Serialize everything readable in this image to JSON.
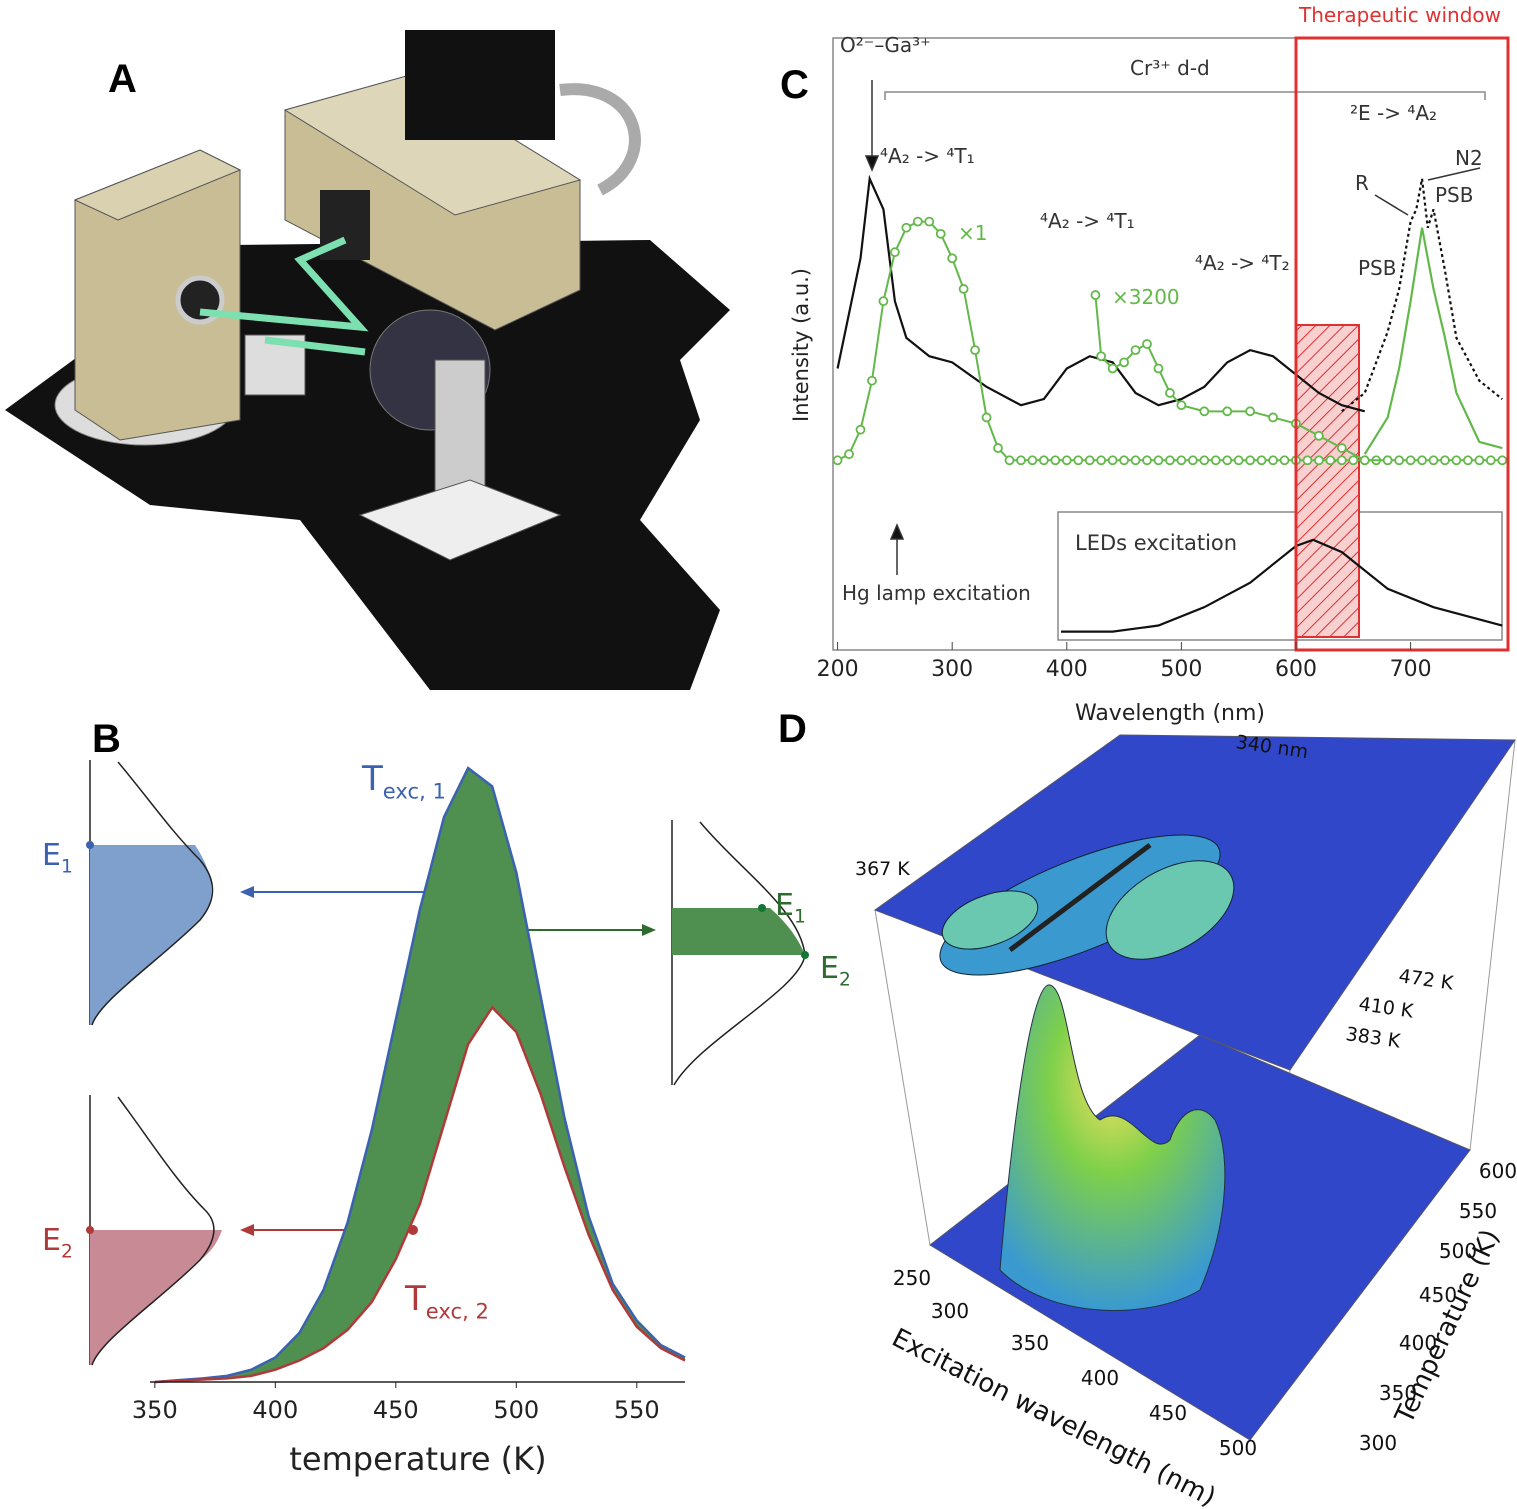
{
  "illustration": {
    "label": "A"
  },
  "chart_data": [
    {
      "type": "band",
      "label": "B",
      "xlabel": "temperature (K)",
      "xlim": [
        348,
        570
      ],
      "ylim": [
        0,
        1
      ],
      "xticks": [
        350,
        400,
        450,
        500,
        550
      ],
      "fill_color": "#4f8f4f",
      "x": [
        350,
        360,
        370,
        380,
        390,
        400,
        410,
        420,
        430,
        440,
        450,
        460,
        470,
        480,
        490,
        500,
        510,
        520,
        530,
        540,
        550,
        560,
        570
      ],
      "series": [
        {
          "color": "#3a62b0",
          "values": [
            0,
            0.003,
            0.006,
            0.01,
            0.02,
            0.04,
            0.08,
            0.15,
            0.26,
            0.41,
            0.59,
            0.77,
            0.92,
            1.0,
            0.97,
            0.83,
            0.63,
            0.43,
            0.27,
            0.16,
            0.1,
            0.06,
            0.04
          ]
        },
        {
          "color": "#b03a3a",
          "values": [
            0,
            0.002,
            0.004,
            0.006,
            0.01,
            0.02,
            0.035,
            0.055,
            0.085,
            0.13,
            0.2,
            0.29,
            0.42,
            0.55,
            0.61,
            0.57,
            0.47,
            0.35,
            0.24,
            0.15,
            0.09,
            0.055,
            0.035
          ]
        }
      ],
      "annotations": [
        {
          "main": "T",
          "sub": "exc, 1",
          "color": "#3a62b0"
        },
        {
          "main": "T",
          "sub": "exc, 2",
          "color": "#b03a3a"
        }
      ],
      "levels": [
        {
          "main": "E",
          "sub": "1",
          "color": "#3a62b0"
        },
        {
          "main": "E",
          "sub": "2",
          "color": "#b03a3a"
        },
        {
          "main": "E",
          "sub": "1",
          "color": "#2e6b2e"
        },
        {
          "main": "E",
          "sub": "2",
          "color": "#2e6b2e"
        }
      ]
    },
    {
      "type": "line",
      "label": "C",
      "xlabel": "Wavelength (nm)",
      "ylabel": "Intensity (a.u.)",
      "xlim": [
        196,
        785
      ],
      "ylim": [
        0,
        1
      ],
      "xticks": [
        200,
        300,
        400,
        500,
        600,
        700
      ],
      "window": {
        "label": "Therapeutic window",
        "range": [
          600,
          785
        ],
        "color": "#e03030"
      },
      "hatched_range": [
        600,
        655
      ],
      "series": [
        {
          "color": "#111111",
          "style": "solid",
          "x": [
            200,
            220,
            228,
            240,
            250,
            260,
            280,
            300,
            330,
            360,
            380,
            400,
            420,
            440,
            460,
            480,
            500,
            520,
            540,
            560,
            580,
            600,
            620,
            640,
            660
          ],
          "values": [
            0.46,
            0.64,
            0.77,
            0.72,
            0.57,
            0.51,
            0.48,
            0.47,
            0.43,
            0.4,
            0.41,
            0.46,
            0.48,
            0.47,
            0.42,
            0.4,
            0.41,
            0.43,
            0.47,
            0.49,
            0.48,
            0.45,
            0.42,
            0.4,
            0.39
          ]
        },
        {
          "name": "×1",
          "color": "#63b84a",
          "style": "circles",
          "x": [
            200,
            210,
            220,
            230,
            240,
            250,
            260,
            270,
            280,
            290,
            300,
            310,
            320,
            330,
            340,
            350,
            360,
            370,
            380,
            390,
            400,
            410,
            420,
            430,
            440,
            450,
            460,
            470,
            480,
            490,
            500,
            510,
            520,
            530,
            540,
            550,
            560,
            570,
            580,
            590,
            600,
            610,
            620,
            630,
            640,
            650,
            660,
            670,
            680,
            690,
            700,
            710,
            720,
            730,
            740,
            750,
            760,
            770,
            780
          ],
          "values": [
            0.31,
            0.32,
            0.36,
            0.44,
            0.57,
            0.65,
            0.69,
            0.7,
            0.7,
            0.68,
            0.64,
            0.59,
            0.49,
            0.38,
            0.33,
            0.31,
            0.31,
            0.31,
            0.31,
            0.31,
            0.31,
            0.31,
            0.31,
            0.31,
            0.31,
            0.31,
            0.31,
            0.31,
            0.31,
            0.31,
            0.31,
            0.31,
            0.31,
            0.31,
            0.31,
            0.31,
            0.31,
            0.31,
            0.31,
            0.31,
            0.31,
            0.31,
            0.31,
            0.31,
            0.31,
            0.31,
            0.31,
            0.31,
            0.31,
            0.31,
            0.31,
            0.31,
            0.31,
            0.31,
            0.31,
            0.31,
            0.31,
            0.31,
            0.31
          ]
        },
        {
          "name": "×3200",
          "color": "#63b84a",
          "style": "circles",
          "x": [
            425,
            430,
            440,
            450,
            460,
            470,
            480,
            490,
            500,
            520,
            540,
            560,
            580,
            600,
            620,
            640,
            660,
            680
          ],
          "values": [
            0.58,
            0.48,
            0.46,
            0.47,
            0.49,
            0.5,
            0.46,
            0.42,
            0.4,
            0.39,
            0.39,
            0.39,
            0.38,
            0.37,
            0.35,
            0.33,
            0.31,
            0.31
          ]
        },
        {
          "color": "#111111",
          "style": "dotted",
          "x": [
            640,
            660,
            670,
            680,
            690,
            700,
            705,
            710,
            715,
            720,
            730,
            740,
            760,
            780
          ],
          "values": [
            0.39,
            0.42,
            0.47,
            0.52,
            0.59,
            0.7,
            0.72,
            0.77,
            0.69,
            0.72,
            0.62,
            0.51,
            0.44,
            0.41
          ]
        },
        {
          "color": "#63b84a",
          "style": "solid",
          "x": [
            660,
            680,
            690,
            700,
            710,
            720,
            730,
            740,
            760,
            780
          ],
          "values": [
            0.32,
            0.38,
            0.46,
            0.57,
            0.69,
            0.59,
            0.51,
            0.42,
            0.34,
            0.33
          ]
        },
        {
          "name": "LEDs excitation",
          "color": "#111111",
          "style": "solid",
          "x": [
            395,
            440,
            480,
            520,
            560,
            600,
            615,
            640,
            680,
            720,
            780
          ],
          "values": [
            0.03,
            0.03,
            0.04,
            0.07,
            0.11,
            0.17,
            0.18,
            0.16,
            0.1,
            0.07,
            0.04
          ]
        }
      ],
      "annotations": [
        "O²⁻–Ga³⁺",
        "Cr³⁺ d-d",
        "⁴A₂ -> ⁴T₁",
        "⁴A₂ -> ⁴T₁",
        "⁴A₂ -> ⁴T₂",
        "²E -> ⁴A₂",
        "R",
        "N2",
        "PSB",
        "PSB",
        "Hg lamp excitation"
      ]
    },
    {
      "type": "surface",
      "label": "D",
      "xlabel": "Excitation wavelength (nm)",
      "ylabel": "Temperature (K)",
      "xticks": [
        250,
        300,
        350,
        400,
        450,
        500
      ],
      "yticks": [
        300,
        350,
        400,
        450,
        500,
        550,
        600
      ],
      "annotations": [
        "367 K",
        "472 K",
        "410 K",
        "383 K",
        "340 nm"
      ]
    }
  ]
}
